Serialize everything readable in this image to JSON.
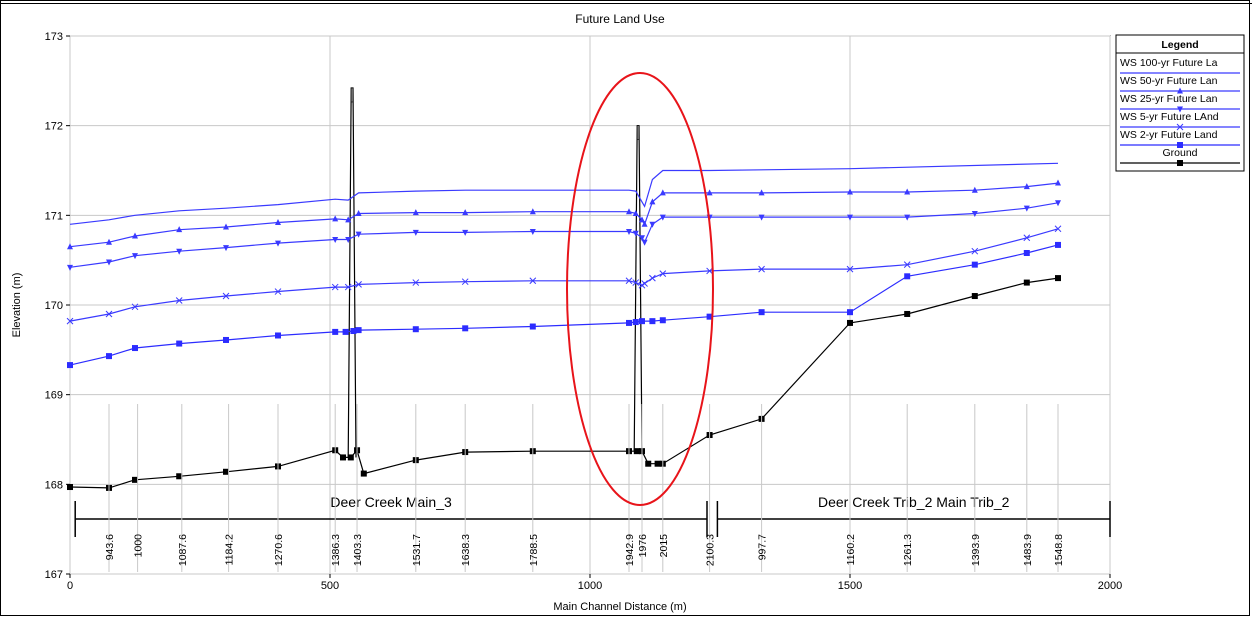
{
  "chart_data": {
    "type": "line",
    "title": "Future Land Use",
    "xlabel": "Main Channel Distance (m)",
    "ylabel": "Elevation (m)",
    "xlim": [
      0,
      2000
    ],
    "ylim": [
      167,
      173
    ],
    "x_ticks": [
      0,
      500,
      1000,
      1500,
      2000
    ],
    "y_ticks": [
      167,
      168,
      169,
      170,
      171,
      172,
      173
    ],
    "grid": true,
    "legend_position": "right",
    "legend_title": "Legend",
    "series": [
      {
        "name": "WS  100-yr Future La",
        "color": "#3a3aff",
        "marker": "none",
        "points": [
          [
            0,
            170.9
          ],
          [
            75,
            170.95
          ],
          [
            125,
            171.0
          ],
          [
            210,
            171.05
          ],
          [
            300,
            171.08
          ],
          [
            400,
            171.12
          ],
          [
            510,
            171.18
          ],
          [
            535,
            171.17
          ],
          [
            555,
            171.25
          ],
          [
            665,
            171.27
          ],
          [
            760,
            171.28
          ],
          [
            890,
            171.28
          ],
          [
            1075,
            171.28
          ],
          [
            1088,
            171.27
          ],
          [
            1100,
            171.15
          ],
          [
            1105,
            171.1
          ],
          [
            1120,
            171.4
          ],
          [
            1140,
            171.5
          ],
          [
            1230,
            171.5
          ],
          [
            1500,
            171.52
          ],
          [
            1900,
            171.58
          ]
        ]
      },
      {
        "name": "WS  50-yr Future Lan",
        "color": "#3a3aff",
        "marker": "triangle-up",
        "points": [
          [
            0,
            170.65
          ],
          [
            75,
            170.7
          ],
          [
            125,
            170.77
          ],
          [
            210,
            170.84
          ],
          [
            300,
            170.87
          ],
          [
            400,
            170.92
          ],
          [
            510,
            170.96
          ],
          [
            535,
            170.95
          ],
          [
            555,
            171.02
          ],
          [
            665,
            171.03
          ],
          [
            760,
            171.03
          ],
          [
            890,
            171.04
          ],
          [
            1075,
            171.04
          ],
          [
            1088,
            171.02
          ],
          [
            1100,
            170.95
          ],
          [
            1105,
            170.9
          ],
          [
            1120,
            171.15
          ],
          [
            1140,
            171.25
          ],
          [
            1230,
            171.25
          ],
          [
            1330,
            171.25
          ],
          [
            1500,
            171.26
          ],
          [
            1610,
            171.26
          ],
          [
            1740,
            171.28
          ],
          [
            1840,
            171.32
          ],
          [
            1900,
            171.36
          ]
        ]
      },
      {
        "name": "WS  25-yr Future Lan",
        "color": "#3a3aff",
        "marker": "triangle-down",
        "points": [
          [
            0,
            170.42
          ],
          [
            75,
            170.48
          ],
          [
            125,
            170.55
          ],
          [
            210,
            170.6
          ],
          [
            300,
            170.64
          ],
          [
            400,
            170.69
          ],
          [
            510,
            170.73
          ],
          [
            535,
            170.73
          ],
          [
            555,
            170.79
          ],
          [
            665,
            170.81
          ],
          [
            760,
            170.81
          ],
          [
            890,
            170.82
          ],
          [
            1075,
            170.82
          ],
          [
            1088,
            170.8
          ],
          [
            1100,
            170.75
          ],
          [
            1105,
            170.7
          ],
          [
            1120,
            170.9
          ],
          [
            1140,
            170.98
          ],
          [
            1230,
            170.98
          ],
          [
            1330,
            170.98
          ],
          [
            1500,
            170.98
          ],
          [
            1610,
            170.98
          ],
          [
            1740,
            171.02
          ],
          [
            1840,
            171.08
          ],
          [
            1900,
            171.14
          ]
        ]
      },
      {
        "name": "WS  5-yr Future LAnd",
        "color": "#3a3aff",
        "marker": "x",
        "points": [
          [
            0,
            169.82
          ],
          [
            75,
            169.9
          ],
          [
            125,
            169.98
          ],
          [
            210,
            170.05
          ],
          [
            300,
            170.1
          ],
          [
            400,
            170.15
          ],
          [
            510,
            170.2
          ],
          [
            535,
            170.2
          ],
          [
            555,
            170.23
          ],
          [
            665,
            170.25
          ],
          [
            760,
            170.26
          ],
          [
            890,
            170.27
          ],
          [
            1075,
            170.27
          ],
          [
            1088,
            170.25
          ],
          [
            1100,
            170.22
          ],
          [
            1105,
            170.24
          ],
          [
            1120,
            170.3
          ],
          [
            1140,
            170.35
          ],
          [
            1230,
            170.38
          ],
          [
            1330,
            170.4
          ],
          [
            1500,
            170.4
          ],
          [
            1610,
            170.45
          ],
          [
            1740,
            170.6
          ],
          [
            1840,
            170.75
          ],
          [
            1900,
            170.85
          ]
        ]
      },
      {
        "name": "WS  2-yr Future Land",
        "color": "#2c2cff",
        "marker": "square",
        "points": [
          [
            0,
            169.33
          ],
          [
            75,
            169.43
          ],
          [
            125,
            169.52
          ],
          [
            210,
            169.57
          ],
          [
            300,
            169.61
          ],
          [
            400,
            169.66
          ],
          [
            510,
            169.7
          ],
          [
            530,
            169.7
          ],
          [
            545,
            169.71
          ],
          [
            555,
            169.72
          ],
          [
            665,
            169.73
          ],
          [
            760,
            169.74
          ],
          [
            890,
            169.76
          ],
          [
            1075,
            169.8
          ],
          [
            1088,
            169.81
          ],
          [
            1100,
            169.82
          ],
          [
            1120,
            169.82
          ],
          [
            1140,
            169.83
          ],
          [
            1230,
            169.87
          ],
          [
            1330,
            169.92
          ],
          [
            1500,
            169.92
          ],
          [
            1610,
            170.32
          ],
          [
            1740,
            170.45
          ],
          [
            1840,
            170.58
          ],
          [
            1900,
            170.67
          ]
        ]
      },
      {
        "name": "Ground",
        "color": "#000000",
        "marker": "square",
        "points": [
          [
            0,
            167.97
          ],
          [
            75,
            167.96
          ],
          [
            125,
            168.05
          ],
          [
            210,
            168.09
          ],
          [
            300,
            168.14
          ],
          [
            400,
            168.2
          ],
          [
            510,
            168.38
          ],
          [
            525,
            168.3
          ],
          [
            540,
            168.3
          ],
          [
            552,
            168.38
          ],
          [
            565,
            168.12
          ],
          [
            665,
            168.27
          ],
          [
            760,
            168.36
          ],
          [
            890,
            168.37
          ],
          [
            1075,
            168.37
          ],
          [
            1090,
            168.37
          ],
          [
            1100,
            168.37
          ],
          [
            1112,
            168.23
          ],
          [
            1130,
            168.23
          ],
          [
            1140,
            168.23
          ],
          [
            1230,
            168.55
          ],
          [
            1330,
            168.73
          ],
          [
            1500,
            169.8
          ],
          [
            1610,
            169.9
          ],
          [
            1740,
            170.1
          ],
          [
            1840,
            170.25
          ],
          [
            1900,
            170.3
          ]
        ]
      }
    ],
    "structures": [
      {
        "x_left": 535,
        "x_right": 550,
        "top": 172.42,
        "bottom": 168.3
      },
      {
        "x_left": 1085,
        "x_right": 1100,
        "top": 172.0,
        "bottom": 168.37
      }
    ],
    "reaches": [
      {
        "label": "Deer Creek Main_3",
        "x_start": 10,
        "x_end": 1225
      },
      {
        "label": "Deer Creek Trib_2 Main Trib_2",
        "x_start": 1245,
        "x_end": 2000
      }
    ],
    "stations": [
      {
        "label": "943.6",
        "x": 75
      },
      {
        "label": "1000",
        "x": 130
      },
      {
        "label": "1087.6",
        "x": 215
      },
      {
        "label": "1184.2",
        "x": 305
      },
      {
        "label": "1270.6",
        "x": 400
      },
      {
        "label": "1386.3",
        "x": 510
      },
      {
        "label": "1403.3",
        "x": 552
      },
      {
        "label": "1531.7",
        "x": 665
      },
      {
        "label": "1638.3",
        "x": 760
      },
      {
        "label": "1788.5",
        "x": 890
      },
      {
        "label": "1942.9",
        "x": 1075
      },
      {
        "label": "1976",
        "x": 1100
      },
      {
        "label": "2015",
        "x": 1140
      },
      {
        "label": "2100.3",
        "x": 1230
      },
      {
        "label": "997.7",
        "x": 1330
      },
      {
        "label": "1160.2",
        "x": 1500
      },
      {
        "label": "1261.3",
        "x": 1610
      },
      {
        "label": "1393.9",
        "x": 1740
      },
      {
        "label": "1483.9",
        "x": 1840
      },
      {
        "label": "1548.8",
        "x": 1900
      }
    ],
    "annotation": {
      "shape": "ellipse",
      "color": "#e8141a"
    }
  }
}
